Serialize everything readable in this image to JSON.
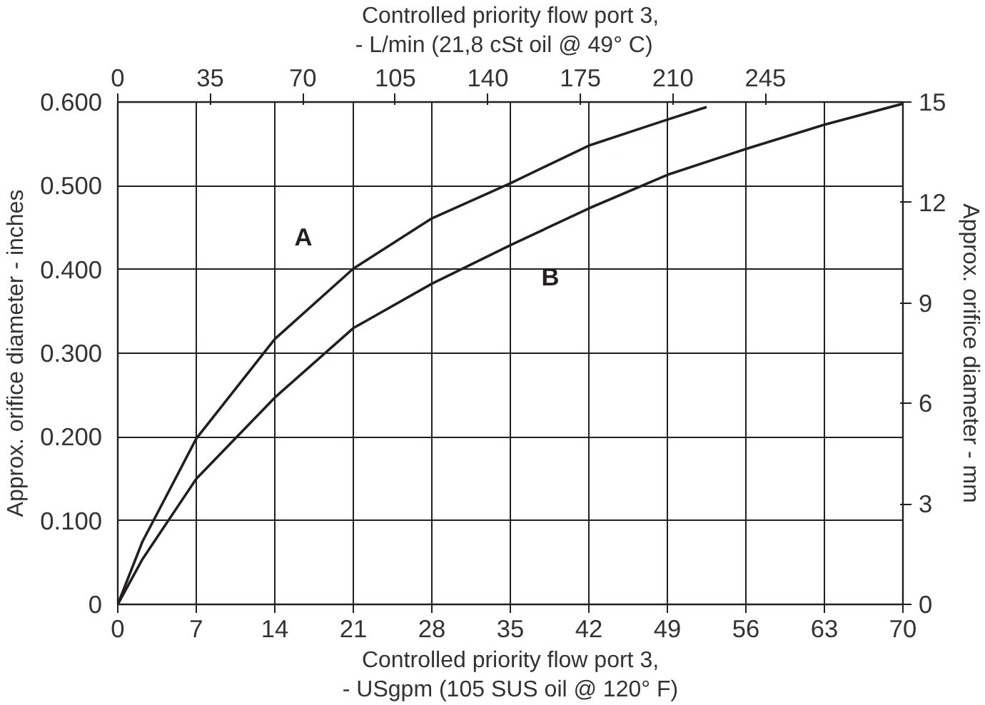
{
  "chart_data": {
    "type": "line",
    "xlabel": "Controlled priority flow port 3,\n- USgpm (105 SUS oil @ 120° F)",
    "x2label": "Controlled priority flow port 3,\n- L/min (21,8 cSt  oil  @ 49° C)",
    "ylabel": "Approx. orifice diameter - inches",
    "y2label": "Approx. orifice diameter - mm",
    "xlim": [
      0,
      70
    ],
    "xticks": [
      0,
      7,
      14,
      21,
      28,
      35,
      42,
      49,
      56,
      63,
      70
    ],
    "x2lim": [
      0,
      297
    ],
    "x2ticks": [
      0,
      35,
      70,
      105,
      140,
      175,
      210,
      245
    ],
    "ylim": [
      0,
      0.6
    ],
    "yticks": [
      {
        "value": 0,
        "label": "0"
      },
      {
        "value": 0.1,
        "label": "0.100"
      },
      {
        "value": 0.2,
        "label": "0.200"
      },
      {
        "value": 0.3,
        "label": "0.300"
      },
      {
        "value": 0.4,
        "label": "0.400"
      },
      {
        "value": 0.5,
        "label": "0.500"
      },
      {
        "value": 0.6,
        "label": "0.600"
      }
    ],
    "y2lim": [
      0,
      15
    ],
    "y2ticks": [
      0,
      3,
      6,
      9,
      12,
      15
    ],
    "grid": true,
    "marker": "none",
    "line_style": "solid",
    "legend": false,
    "series": [
      {
        "name": "A",
        "color": "#231f20",
        "x": [
          0,
          2.2,
          4.35,
          7,
          14,
          21,
          28,
          35,
          42,
          49,
          52.5
        ],
        "values": [
          0,
          0.075,
          0.13,
          0.198,
          0.317,
          0.401,
          0.461,
          0.503,
          0.548,
          0.579,
          0.594
        ]
      },
      {
        "name": "B",
        "color": "#231f20",
        "x": [
          0,
          2.2,
          7,
          14,
          21,
          28,
          35,
          42,
          49,
          56,
          63,
          70
        ],
        "values": [
          0,
          0.054,
          0.15,
          0.247,
          0.33,
          0.383,
          0.429,
          0.473,
          0.513,
          0.544,
          0.573,
          0.598
        ]
      }
    ]
  }
}
